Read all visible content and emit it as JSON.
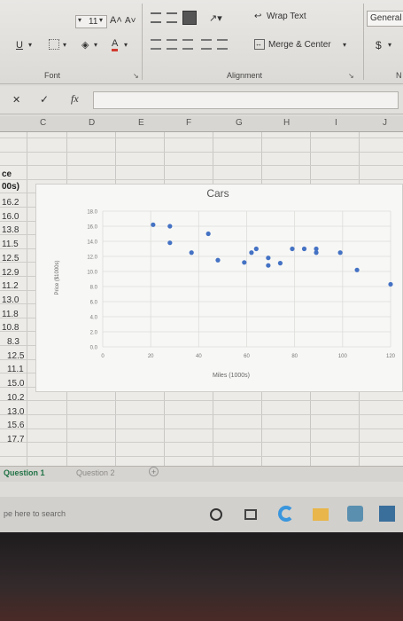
{
  "ribbon": {
    "font_size": "11",
    "grow_font": "A˄",
    "shrink_font": "A˅",
    "underline": "U",
    "font_color_letter": "A",
    "wrap_text": "Wrap Text",
    "merge_center": "Merge & Center",
    "number_format": "General",
    "currency": "$",
    "groups": {
      "font": "Font",
      "alignment": "Alignment"
    },
    "number_group_cut": "N"
  },
  "formula_bar": {
    "cancel": "✕",
    "enter": "✓",
    "fx": "fx",
    "value": ""
  },
  "columns": [
    "C",
    "D",
    "E",
    "F",
    "G",
    "H",
    "I",
    "J"
  ],
  "column_b": {
    "header_line1": "ce",
    "header_line2": "00s)",
    "values": [
      "16.2",
      "16.0",
      "13.8",
      "11.5",
      "12.5",
      "12.9",
      "11.2",
      "13.0",
      "11.8",
      "10.8",
      "8.3",
      "12.5",
      "11.1",
      "15.0",
      "10.2",
      "13.0",
      "15.6",
      "17.7"
    ]
  },
  "sheet_tabs": [
    "Question 1",
    "Question 2"
  ],
  "add_sheet": "+",
  "taskbar": {
    "search_placeholder": "pe here to search"
  },
  "colors": {
    "accent": "#4472c4",
    "tab_active": "#217346"
  },
  "chart_data": {
    "type": "scatter",
    "title": "Cars",
    "xlabel": "Miles (1000s)",
    "ylabel": "Price ($1000s)",
    "xlim": [
      0,
      120
    ],
    "ylim": [
      0,
      18
    ],
    "x_ticks": [
      "0",
      "20",
      "40",
      "60",
      "80",
      "100",
      "120"
    ],
    "y_ticks": [
      "0.0",
      "2.0",
      "4.0",
      "6.0",
      "8.0",
      "10.0",
      "12.0",
      "14.0",
      "16.0",
      "18.0"
    ],
    "x": [
      21,
      28,
      28,
      37,
      44,
      48,
      59,
      62,
      64,
      69,
      69,
      74,
      79,
      84,
      89,
      89,
      99,
      106,
      120
    ],
    "y": [
      16.2,
      16.0,
      13.8,
      12.5,
      15.0,
      11.5,
      11.2,
      12.5,
      13.0,
      11.8,
      10.8,
      11.1,
      13.0,
      13.0,
      13.0,
      12.5,
      12.5,
      10.2,
      8.3
    ],
    "grid": true,
    "legend": "none"
  }
}
